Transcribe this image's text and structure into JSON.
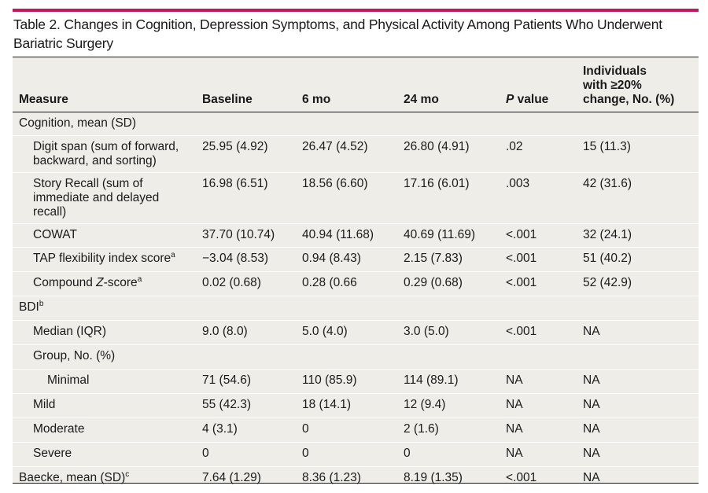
{
  "title": "Table 2. Changes in Cognition, Depression Symptoms, and Physical Activity Among Patients Who Underwent Bariatric Surgery",
  "colors": {
    "accent_bar": "#c2185b",
    "table_bg": "#eeede8",
    "row_rule": "#ffffff"
  },
  "headers": {
    "measure": "Measure",
    "baseline": "Baseline",
    "m6": "6 mo",
    "m24": "24 mo",
    "p_italic": "P",
    "p_rest": " value",
    "change_l1": "Individuals",
    "change_l2": "with ≥20%",
    "change_l3": "change, No. (%)"
  },
  "rows": {
    "cognition": {
      "label": "Cognition, mean (SD)"
    },
    "digit": {
      "l1": "Digit span (sum of forward,",
      "l2": "backward, and sorting)",
      "baseline": "25.95 (4.92)",
      "m6": "26.47 (4.52)",
      "m24": "26.80 (4.91)",
      "p": ".02",
      "change": "15 (11.3)"
    },
    "story": {
      "l1": "Story Recall (sum of",
      "l2": "immediate and delayed",
      "l3": "recall)",
      "baseline": "16.98 (6.51)",
      "m6": "18.56 (6.60)",
      "m24": "17.16 (6.01)",
      "p": ".003",
      "change": "42 (31.6)"
    },
    "cowat": {
      "label": "COWAT",
      "baseline": "37.70 (10.74)",
      "m6": "40.94 (11.68)",
      "m24": "40.69 (11.69)",
      "p": "<.001",
      "change": "32 (24.1)"
    },
    "tap": {
      "label": "TAP flexibility index score",
      "sup": "a",
      "baseline": "−3.04 (8.53)",
      "m6": "0.94 (8.43)",
      "m24": "2.15 (7.83)",
      "p": "<.001",
      "change": "51 (40.2)"
    },
    "compound": {
      "pre": "Compound ",
      "ital": "Z",
      "post": "-score",
      "sup": "a",
      "baseline": "0.02 (0.68)",
      "m6": "0.28 (0.66",
      "m24": "0.29 (0.68)",
      "p": "<.001",
      "change": "52 (42.9)"
    },
    "bdi": {
      "label": "BDI",
      "sup": "b"
    },
    "median": {
      "label": "Median (IQR)",
      "baseline": "9.0 (8.0)",
      "m6": "5.0 (4.0)",
      "m24": "3.0 (5.0)",
      "p": "<.001",
      "change": "NA"
    },
    "group": {
      "label": "Group, No. (%)"
    },
    "minimal": {
      "label": "Minimal",
      "baseline": "71 (54.6)",
      "m6": "110 (85.9)",
      "m24": "114 (89.1)",
      "p": "NA",
      "change": "NA"
    },
    "mild": {
      "label": "Mild",
      "baseline": "55 (42.3)",
      "m6": "18 (14.1)",
      "m24": "12 (9.4)",
      "p": "NA",
      "change": "NA"
    },
    "moderate": {
      "label": "Moderate",
      "baseline": "4 (3.1)",
      "m6": "0",
      "m24": "2 (1.6)",
      "p": "NA",
      "change": "NA"
    },
    "severe": {
      "label": "Severe",
      "baseline": "0",
      "m6": "0",
      "m24": "0",
      "p": "NA",
      "change": "NA"
    },
    "baecke": {
      "label": "Baecke, mean (SD)",
      "sup": "c",
      "baseline": "7.64 (1.29)",
      "m6": "8.36 (1.23)",
      "m24": "8.19 (1.35)",
      "p": "<.001",
      "change": "NA"
    }
  }
}
